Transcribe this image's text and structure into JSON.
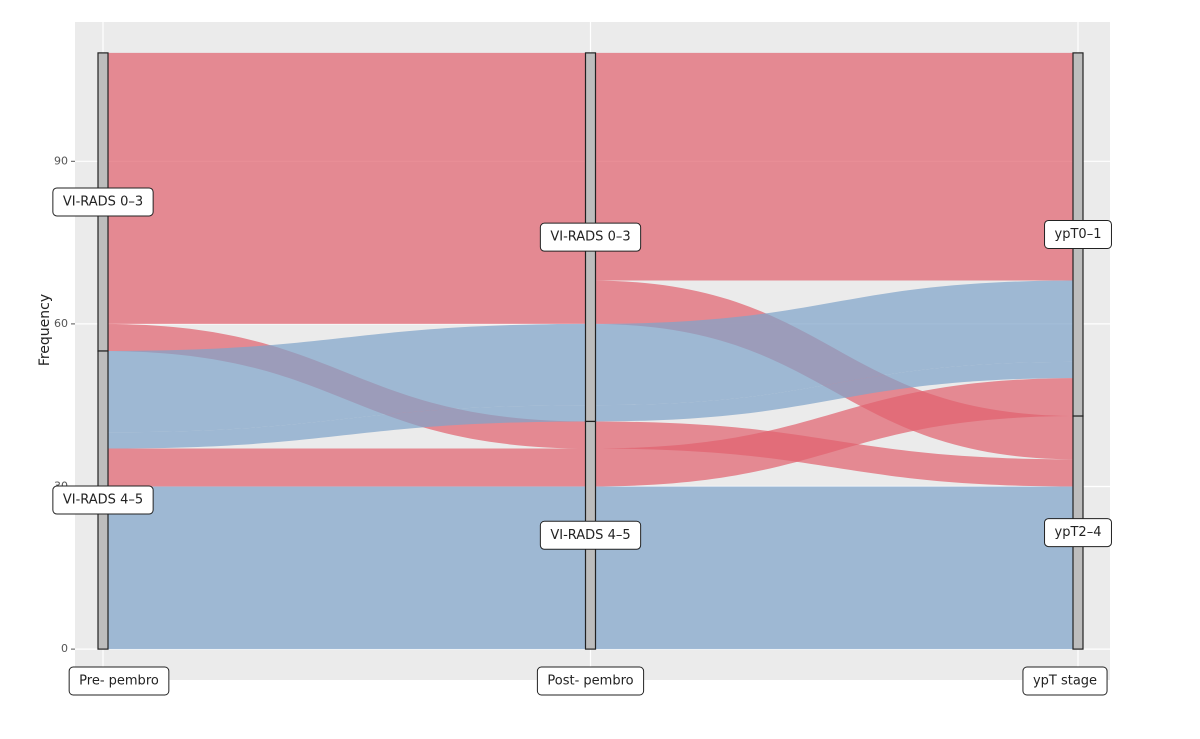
{
  "chart_data": {
    "type": "alluvial",
    "y_label": "Frequency",
    "ylim": [
      -5.7,
      115.7
    ],
    "yticks": [
      0,
      30,
      60,
      90
    ],
    "grid": true,
    "axes": [
      {
        "label": "Pre- pembro",
        "strata": [
          "VI-RADS 0–3",
          "VI-RADS 4–5"
        ]
      },
      {
        "label": "Post- pembro",
        "strata": [
          "VI-RADS 0–3",
          "VI-RADS 4–5"
        ]
      },
      {
        "label": "ypT stage",
        "strata": [
          "ypT0–1",
          "ypT2–4"
        ]
      }
    ],
    "alluvia": [
      {
        "path": [
          0,
          0,
          0
        ],
        "value": 42,
        "color": "#e0636f"
      },
      {
        "path": [
          0,
          0,
          1
        ],
        "value": 8,
        "color": "#e0636f"
      },
      {
        "path": [
          0,
          1,
          1
        ],
        "value": 5,
        "color": "#e0636f"
      },
      {
        "path": [
          1,
          0,
          0
        ],
        "value": 15,
        "color": "#7fa3c9"
      },
      {
        "path": [
          1,
          0,
          0
        ],
        "value": 3,
        "color": "#7fa3c9"
      },
      {
        "path": [
          1,
          1,
          0
        ],
        "value": 7,
        "color": "#e0636f"
      },
      {
        "path": [
          1,
          1,
          1
        ],
        "value": 30,
        "color": "#7fa3c9"
      }
    ]
  }
}
